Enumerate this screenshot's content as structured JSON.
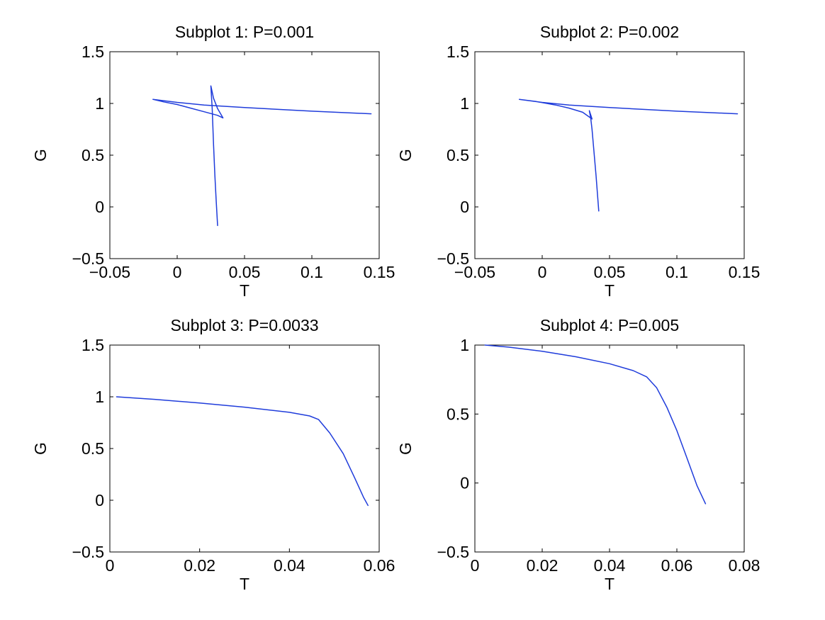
{
  "figure": {
    "background": "#ffffff",
    "line_color": "#1f3cdb"
  },
  "chart_data": [
    {
      "type": "line",
      "title": "Subplot 1: P=0.001",
      "xlabel": "T",
      "ylabel": "G",
      "xlim": [
        -0.05,
        0.15
      ],
      "ylim": [
        -0.5,
        1.5
      ],
      "xticks": [
        -0.05,
        0,
        0.05,
        0.1,
        0.15
      ],
      "xticklabels": [
        "−0.05",
        "0",
        "0.05",
        "0.1",
        "0.15"
      ],
      "yticks": [
        -0.5,
        0,
        0.5,
        1,
        1.5
      ],
      "yticklabels": [
        "−0.5",
        "0",
        "0.5",
        "1",
        "1.5"
      ],
      "grid": false,
      "series": [
        {
          "x": [
            0.144,
            0.1,
            0.05,
            0.02,
            0.0,
            -0.018,
            -0.01,
            0.0,
            0.01,
            0.02,
            0.03,
            0.034,
            0.03,
            0.027,
            0.025,
            0.026,
            0.027,
            0.028,
            0.029,
            0.03
          ],
          "y": [
            0.9,
            0.925,
            0.96,
            0.985,
            1.01,
            1.04,
            1.015,
            0.99,
            0.955,
            0.92,
            0.885,
            0.86,
            0.95,
            1.05,
            1.17,
            0.95,
            0.6,
            0.3,
            0.05,
            -0.18
          ]
        }
      ]
    },
    {
      "type": "line",
      "title": "Subplot 2: P=0.002",
      "xlabel": "T",
      "ylabel": "G",
      "xlim": [
        -0.05,
        0.15
      ],
      "ylim": [
        -0.5,
        1.5
      ],
      "xticks": [
        -0.05,
        0,
        0.05,
        0.1,
        0.15
      ],
      "xticklabels": [
        "−0.05",
        "0",
        "0.05",
        "0.1",
        "0.15"
      ],
      "yticks": [
        -0.5,
        0,
        0.5,
        1,
        1.5
      ],
      "yticklabels": [
        "−0.5",
        "0",
        "0.5",
        "1",
        "1.5"
      ],
      "grid": false,
      "series": [
        {
          "x": [
            0.145,
            0.1,
            0.05,
            0.02,
            0.0,
            -0.017,
            -0.005,
            0.01,
            0.02,
            0.03,
            0.037,
            0.035,
            0.036,
            0.037,
            0.038,
            0.039,
            0.04,
            0.041,
            0.042
          ],
          "y": [
            0.9,
            0.925,
            0.96,
            0.985,
            1.01,
            1.04,
            1.02,
            0.985,
            0.955,
            0.915,
            0.85,
            0.93,
            0.86,
            0.75,
            0.6,
            0.45,
            0.3,
            0.13,
            -0.04
          ]
        }
      ]
    },
    {
      "type": "line",
      "title": "Subplot 3: P=0.0033",
      "xlabel": "T",
      "ylabel": "G",
      "xlim": [
        0,
        0.06
      ],
      "ylim": [
        -0.5,
        1.5
      ],
      "xticks": [
        0,
        0.02,
        0.04,
        0.06
      ],
      "xticklabels": [
        "0",
        "0.02",
        "0.04",
        "0.06"
      ],
      "yticks": [
        -0.5,
        0,
        0.5,
        1,
        1.5
      ],
      "yticklabels": [
        "−0.5",
        "0",
        "0.5",
        "1",
        "1.5"
      ],
      "grid": false,
      "series": [
        {
          "x": [
            0.0015,
            0.01,
            0.02,
            0.03,
            0.04,
            0.0445,
            0.0465,
            0.049,
            0.052,
            0.0545,
            0.0565,
            0.0575
          ],
          "y": [
            1.0,
            0.975,
            0.94,
            0.9,
            0.85,
            0.815,
            0.78,
            0.65,
            0.45,
            0.22,
            0.03,
            -0.05
          ]
        }
      ]
    },
    {
      "type": "line",
      "title": "Subplot 4: P=0.005",
      "xlabel": "T",
      "ylabel": "G",
      "xlim": [
        0,
        0.08
      ],
      "ylim": [
        -0.5,
        1
      ],
      "xticks": [
        0,
        0.02,
        0.04,
        0.06,
        0.08
      ],
      "xticklabels": [
        "0",
        "0.02",
        "0.04",
        "0.06",
        "0.08"
      ],
      "yticks": [
        -0.5,
        0,
        0.5,
        1
      ],
      "yticklabels": [
        "−0.5",
        "0",
        "0.5",
        "1"
      ],
      "grid": false,
      "series": [
        {
          "x": [
            0.003,
            0.01,
            0.02,
            0.03,
            0.04,
            0.047,
            0.051,
            0.054,
            0.057,
            0.06,
            0.063,
            0.066,
            0.0685
          ],
          "y": [
            1.0,
            0.985,
            0.955,
            0.915,
            0.865,
            0.815,
            0.77,
            0.69,
            0.55,
            0.38,
            0.18,
            -0.02,
            -0.15
          ]
        }
      ]
    }
  ]
}
